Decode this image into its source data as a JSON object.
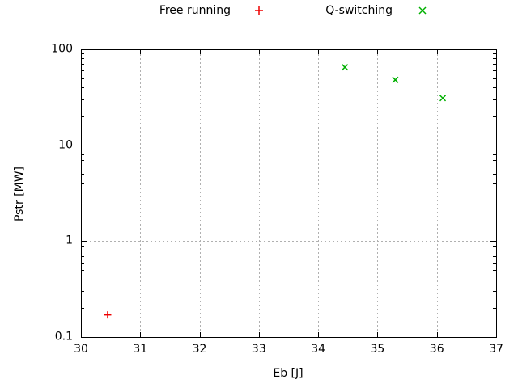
{
  "chart_data": {
    "type": "scatter",
    "title": "",
    "xlabel": "Eb [J]",
    "ylabel": "Pstr [MW]",
    "xlim": [
      30,
      37
    ],
    "ylim": [
      0.1,
      100
    ],
    "y_scale": "log",
    "x_ticks": [
      30,
      31,
      32,
      33,
      34,
      35,
      36,
      37
    ],
    "y_ticks": [
      0.1,
      1,
      10,
      100
    ],
    "y_tick_labels": [
      "0.1",
      "1",
      "10",
      "100"
    ],
    "grid": true,
    "legend_position": "top-center-outside",
    "series": [
      {
        "name": "Free running",
        "marker": "plus",
        "color": "#ee0000",
        "points": [
          {
            "x": 30.45,
            "y": 0.17
          }
        ]
      },
      {
        "name": "Q-switching",
        "marker": "cross",
        "color": "#00b000",
        "points": [
          {
            "x": 34.45,
            "y": 65
          },
          {
            "x": 35.3,
            "y": 48
          },
          {
            "x": 36.1,
            "y": 31
          }
        ]
      }
    ],
    "colors": {
      "axis": "#000000",
      "grid": "#b0b0b0",
      "text": "#000000",
      "background": "#ffffff"
    }
  }
}
